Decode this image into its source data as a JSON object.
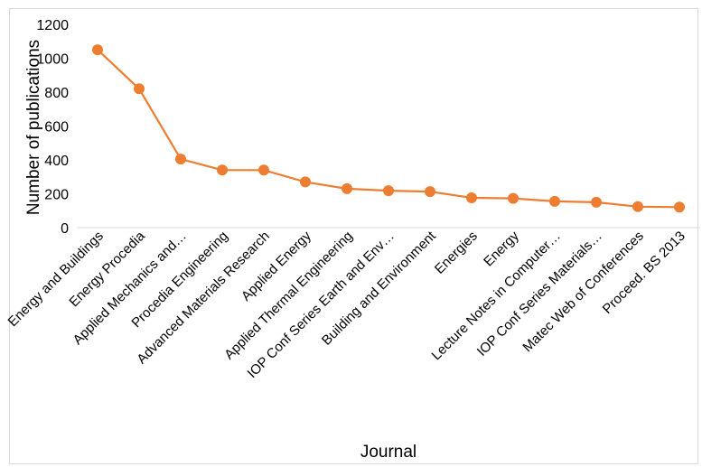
{
  "chart_data": {
    "type": "line",
    "title": "",
    "xlabel": "Journal",
    "ylabel": "Number of publications",
    "ylim": [
      0,
      1200
    ],
    "yticks": [
      0,
      200,
      400,
      600,
      800,
      1000,
      1200
    ],
    "grid": false,
    "legend": "none",
    "categories": [
      "Energy and Buildings",
      "Energy Procedia",
      "Applied Mechanics and…",
      "Procedia Engineering",
      "Advanced Materials Research",
      "Applied Energy",
      "Applied Thermal Engineering",
      "IOP Conf Series Earth and Env…",
      "Building and Environment",
      "Energies",
      "Energy",
      "Lecture Notes in Computer…",
      "IOP Conf Series Materials…",
      "Matec Web of Conferences",
      "Proceed. BS 2013"
    ],
    "series": [
      {
        "values": [
          1050,
          820,
          405,
          340,
          340,
          270,
          230,
          218,
          213,
          176,
          173,
          155,
          150,
          124,
          121
        ],
        "color": "#ED7D31"
      }
    ]
  }
}
